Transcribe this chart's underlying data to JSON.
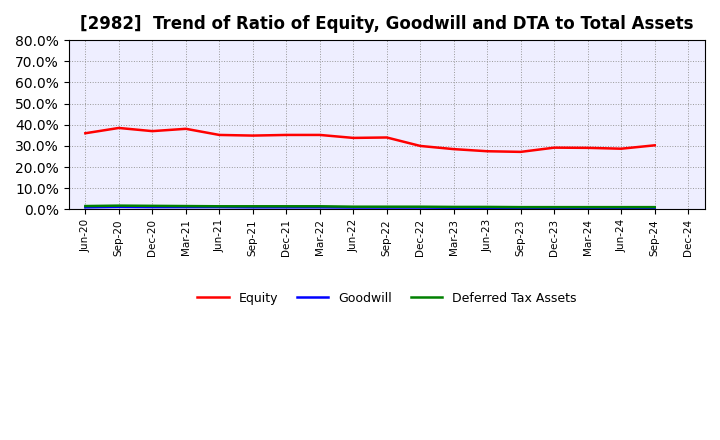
{
  "title": "[2982]  Trend of Ratio of Equity, Goodwill and DTA to Total Assets",
  "x_labels": [
    "Jun-20",
    "Sep-20",
    "Dec-20",
    "Mar-21",
    "Jun-21",
    "Sep-21",
    "Dec-21",
    "Mar-22",
    "Jun-22",
    "Sep-22",
    "Dec-22",
    "Mar-23",
    "Jun-23",
    "Sep-23",
    "Dec-23",
    "Mar-24",
    "Jun-24",
    "Sep-24",
    "Dec-24"
  ],
  "equity": [
    0.36,
    0.385,
    0.37,
    0.381,
    0.352,
    0.349,
    0.352,
    0.352,
    0.338,
    0.34,
    0.3,
    0.285,
    0.275,
    0.272,
    0.292,
    0.291,
    0.287,
    0.303,
    null
  ],
  "goodwill": [
    0.01,
    0.012,
    0.011,
    0.011,
    0.011,
    0.01,
    0.01,
    0.01,
    0.009,
    0.009,
    0.009,
    0.008,
    0.008,
    0.007,
    0.007,
    0.007,
    0.007,
    0.007,
    null
  ],
  "dta": [
    0.016,
    0.018,
    0.017,
    0.016,
    0.015,
    0.015,
    0.015,
    0.015,
    0.013,
    0.013,
    0.013,
    0.012,
    0.012,
    0.011,
    0.011,
    0.011,
    0.011,
    0.011,
    null
  ],
  "equity_color": "#FF0000",
  "goodwill_color": "#0000FF",
  "dta_color": "#008000",
  "ylim": [
    0.0,
    0.8
  ],
  "yticks": [
    0.0,
    0.1,
    0.2,
    0.3,
    0.4,
    0.5,
    0.6,
    0.7,
    0.8
  ],
  "background_color": "#FFFFFF",
  "plot_bg_color": "#EEEEFF",
  "grid_color": "#999999",
  "title_fontsize": 12,
  "legend_labels": [
    "Equity",
    "Goodwill",
    "Deferred Tax Assets"
  ]
}
